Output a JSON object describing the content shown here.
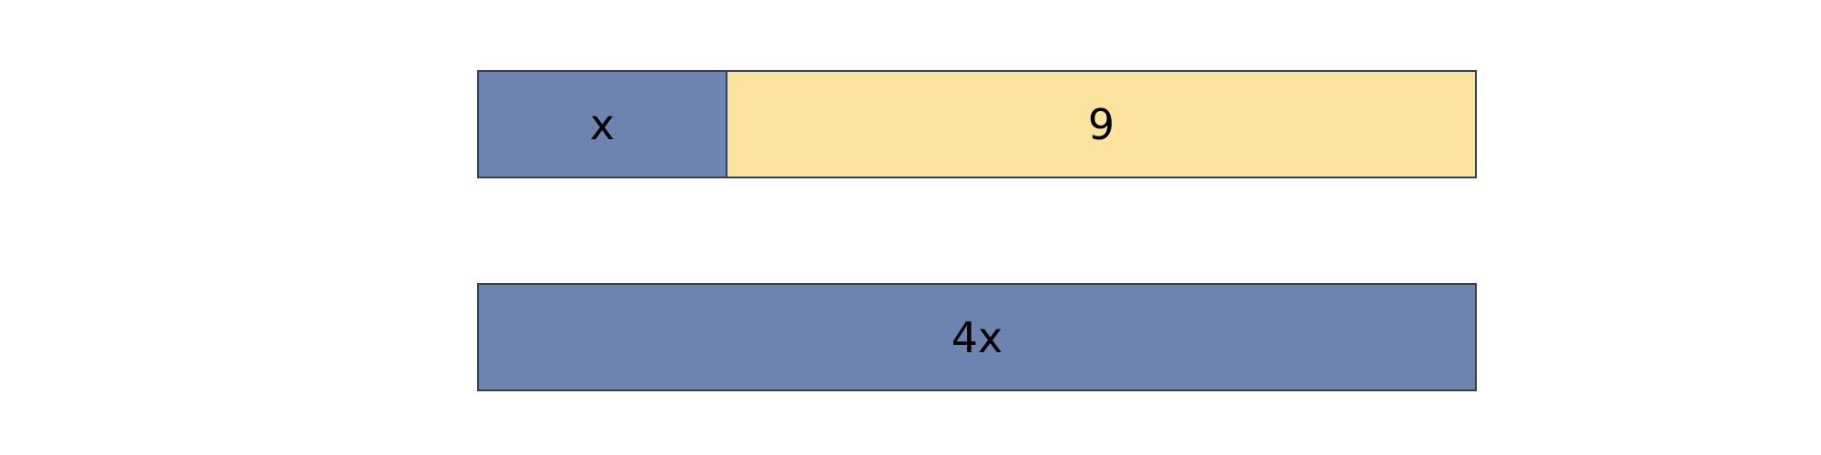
{
  "colors": {
    "unknown_fill": "#6e84b0",
    "constant_fill": "#fce49f",
    "border": "#34404f"
  },
  "top_bar": {
    "segments": [
      {
        "label": "x",
        "fill": "#6e84b0"
      },
      {
        "label": "9",
        "fill": "#fce49f"
      }
    ]
  },
  "bottom_bar": {
    "label": "4x",
    "fill": "#6e84b0"
  }
}
